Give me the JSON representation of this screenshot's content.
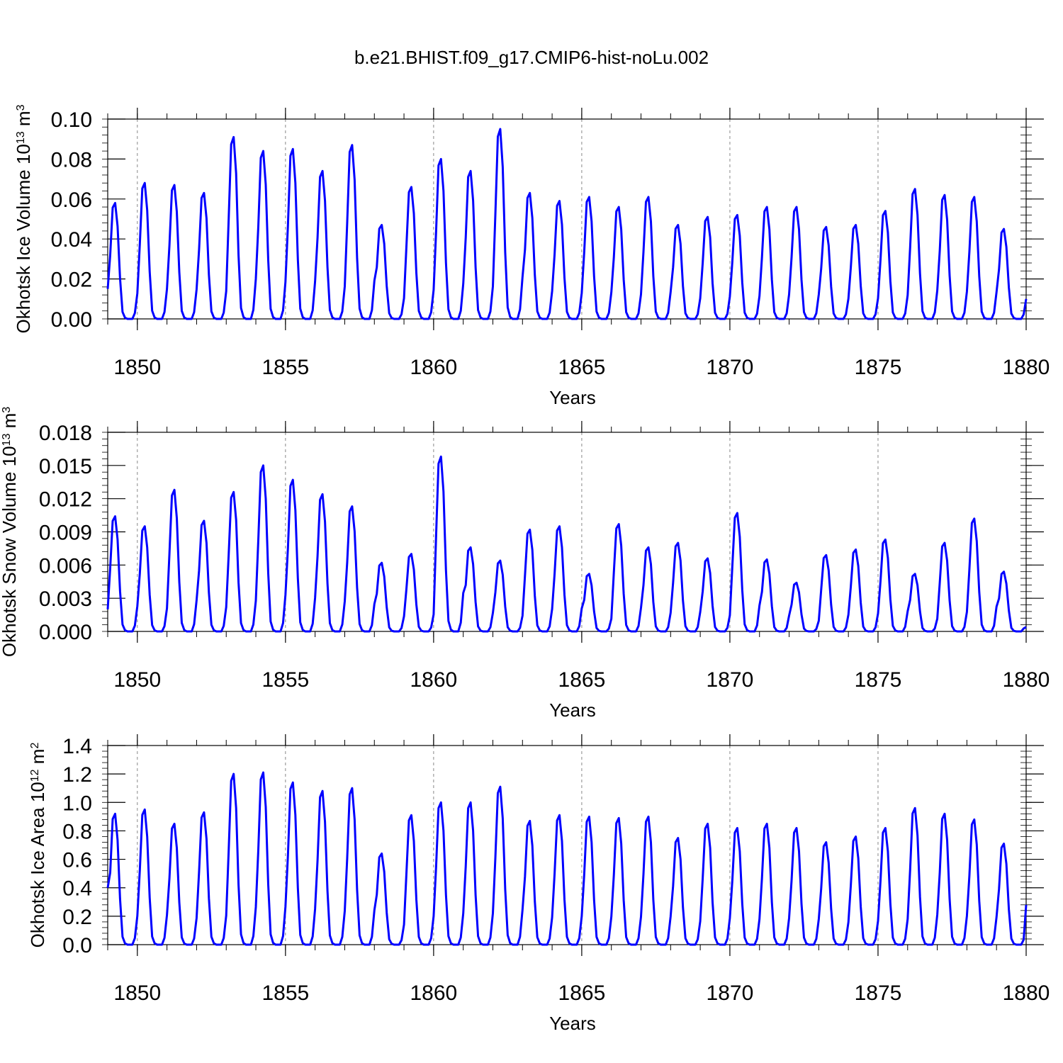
{
  "title": "b.e21.BHIST.f09_g17.CMIP6-hist-noLu.002",
  "colors": {
    "line": "#0000ff",
    "axis": "#000000",
    "grid": "#888888"
  },
  "chart_data": [
    {
      "type": "line",
      "name": "ice-volume",
      "ylabel": {
        "prefix": "Okhotsk Ice Volume 10",
        "exp": "13",
        "unit": " m",
        "unit_exp": "3"
      },
      "xlabel": "Years",
      "xlim": [
        1849,
        1880
      ],
      "ylim": [
        0.0,
        0.1
      ],
      "yticks": [
        0.0,
        0.02,
        0.04,
        0.06,
        0.08,
        0.1
      ],
      "ytick_labels": [
        "0.00",
        "0.02",
        "0.04",
        "0.06",
        "0.08",
        "0.10"
      ],
      "xticks": [
        1850,
        1855,
        1860,
        1865,
        1870,
        1875,
        1880
      ],
      "xtick_labels": [
        "1850",
        "1855",
        "1860",
        "1865",
        "1870",
        "1875",
        "1880"
      ],
      "vlines": [
        1850,
        1855,
        1860,
        1865,
        1870,
        1875
      ],
      "annual_peaks": [
        0.058,
        0.068,
        0.067,
        0.063,
        0.091,
        0.084,
        0.085,
        0.074,
        0.087,
        0.047,
        0.066,
        0.08,
        0.074,
        0.095,
        0.063,
        0.059,
        0.061,
        0.056,
        0.061,
        0.047,
        0.051,
        0.052,
        0.056,
        0.056,
        0.046,
        0.047,
        0.054,
        0.065,
        0.062,
        0.061,
        0.045
      ],
      "start_value": 0.015,
      "end_value": 0.01
    },
    {
      "type": "line",
      "name": "snow-volume",
      "ylabel": {
        "prefix": "Okhotsk Snow Volume 10",
        "exp": "13",
        "unit": " m",
        "unit_exp": "3"
      },
      "xlabel": "Years",
      "xlim": [
        1849,
        1880
      ],
      "ylim": [
        0.0,
        0.018
      ],
      "yticks": [
        0.0,
        0.003,
        0.006,
        0.009,
        0.012,
        0.015,
        0.018
      ],
      "ytick_labels": [
        "0.000",
        "0.003",
        "0.006",
        "0.009",
        "0.012",
        "0.015",
        "0.018"
      ],
      "xticks": [
        1850,
        1855,
        1860,
        1865,
        1870,
        1875,
        1880
      ],
      "xtick_labels": [
        "1850",
        "1855",
        "1860",
        "1865",
        "1870",
        "1875",
        "1880"
      ],
      "vlines": [
        1850,
        1855,
        1860,
        1865,
        1870,
        1875
      ],
      "annual_peaks": [
        0.0104,
        0.0095,
        0.0128,
        0.01,
        0.0126,
        0.015,
        0.0137,
        0.0124,
        0.0113,
        0.0062,
        0.007,
        0.0158,
        0.0076,
        0.0064,
        0.0092,
        0.0095,
        0.0052,
        0.0097,
        0.0076,
        0.008,
        0.0066,
        0.0107,
        0.0065,
        0.0044,
        0.0069,
        0.0074,
        0.0083,
        0.0052,
        0.008,
        0.0102,
        0.0054
      ],
      "start_value": 0.002,
      "end_value": 0.0004
    },
    {
      "type": "line",
      "name": "ice-area",
      "ylabel": {
        "prefix": "Okhotsk Ice Area 10",
        "exp": "12",
        "unit": " m",
        "unit_exp": "2"
      },
      "xlabel": "Years",
      "xlim": [
        1849,
        1880
      ],
      "ylim": [
        0.0,
        1.4
      ],
      "yticks": [
        0.0,
        0.2,
        0.4,
        0.6,
        0.8,
        1.0,
        1.2,
        1.4
      ],
      "ytick_labels": [
        "0.0",
        "0.2",
        "0.4",
        "0.6",
        "0.8",
        "1.0",
        "1.2",
        "1.4"
      ],
      "xticks": [
        1850,
        1855,
        1860,
        1865,
        1870,
        1875,
        1880
      ],
      "xtick_labels": [
        "1850",
        "1855",
        "1860",
        "1865",
        "1870",
        "1875",
        "1880"
      ],
      "vlines": [
        1850,
        1855,
        1860,
        1865,
        1870,
        1875
      ],
      "annual_peaks": [
        0.92,
        0.95,
        0.85,
        0.93,
        1.2,
        1.21,
        1.14,
        1.08,
        1.1,
        0.64,
        0.91,
        1.0,
        1.0,
        1.11,
        0.87,
        0.91,
        0.9,
        0.89,
        0.9,
        0.75,
        0.85,
        0.82,
        0.85,
        0.82,
        0.72,
        0.76,
        0.82,
        0.96,
        0.92,
        0.88,
        0.71
      ],
      "start_value": 0.4,
      "end_value": 0.28
    }
  ]
}
